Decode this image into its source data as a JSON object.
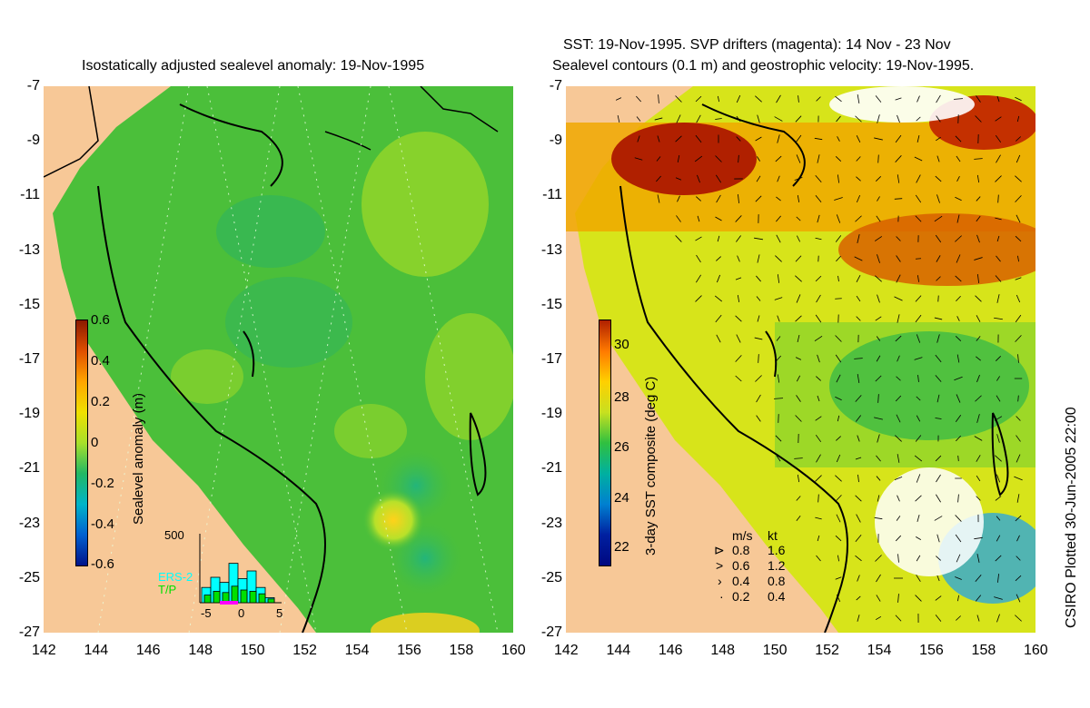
{
  "left": {
    "title": "Isostatically adjusted sealevel anomaly: 19-Nov-1995",
    "colorbar": {
      "label": "Sealevel anomaly (m)",
      "ticks": [
        "0.6",
        "0.4",
        "0.2",
        "0",
        "-0.2",
        "-0.4",
        "-0.6"
      ],
      "range": [
        -0.6,
        0.6
      ]
    },
    "histogram": {
      "ymax_label": "500",
      "x_ticks": [
        "-5",
        "0",
        "5"
      ],
      "legend_ers": "ERS-2",
      "legend_tp": "T/P",
      "ers_values": [
        120,
        200,
        160,
        310,
        190,
        250,
        120,
        40
      ],
      "tp_values": [
        60,
        90,
        80,
        130,
        100,
        90,
        70,
        30
      ],
      "ymax": 500,
      "ers_color": "#00ffff",
      "tp_color": "#00e000",
      "marker_color": "#ff00ff"
    }
  },
  "right": {
    "title_line1": "SST: 19-Nov-1995. SVP drifters (magenta): 14 Nov - 23 Nov",
    "title_line2": "Sealevel contours (0.1 m) and geostrophic velocity: 19-Nov-1995.",
    "colorbar": {
      "label": "3-day SST composite (deg C)",
      "ticks": [
        "30",
        "28",
        "26",
        "24",
        "22"
      ],
      "range": [
        21,
        31
      ]
    },
    "velocity_legend": {
      "header_ms": "m/s",
      "header_kt": "kt",
      "rows": [
        {
          "ms": "0.8",
          "kt": "1.6"
        },
        {
          "ms": "0.6",
          "kt": "1.2"
        },
        {
          "ms": "0.4",
          "kt": "0.8"
        },
        {
          "ms": "0.2",
          "kt": "0.4"
        }
      ]
    }
  },
  "axes": {
    "lat_ticks": [
      "-7",
      "-9",
      "-11",
      "-13",
      "-15",
      "-17",
      "-19",
      "-21",
      "-23",
      "-25",
      "-27"
    ],
    "lon_ticks": [
      "142",
      "144",
      "146",
      "148",
      "150",
      "152",
      "154",
      "156",
      "158",
      "160"
    ]
  },
  "credit": "CSIRO Plotted 30-Jun-2005 22:00",
  "colors": {
    "land": "#f7c897",
    "ssh_base": "#4bbf3a",
    "sst_warm": "#ff9900",
    "sst_hot": "#b02000"
  }
}
